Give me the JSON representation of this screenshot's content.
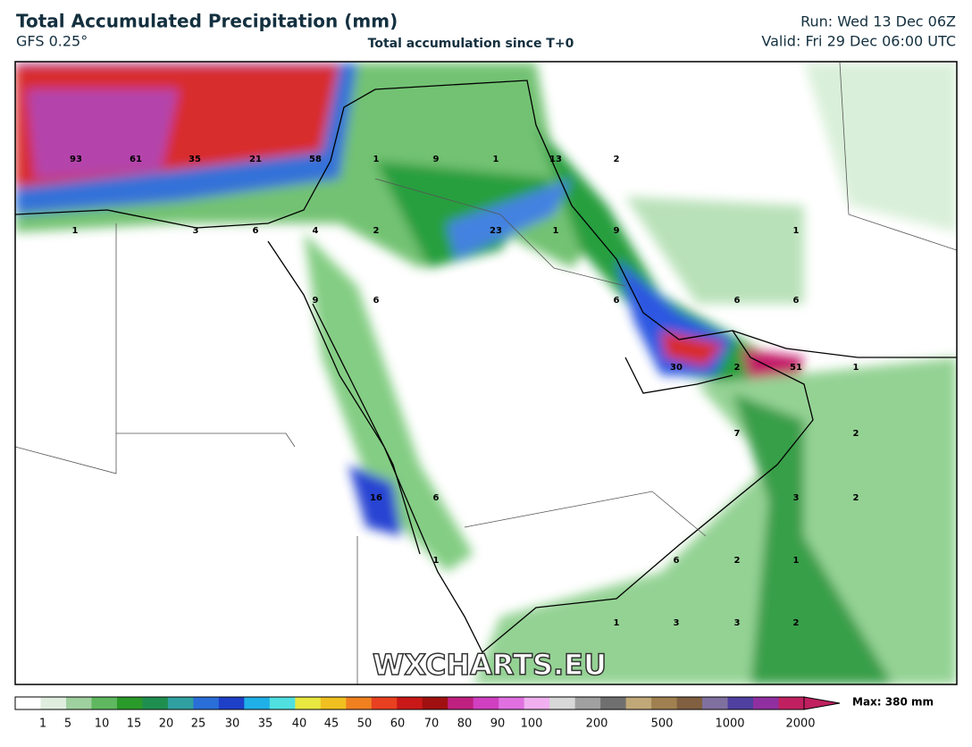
{
  "header": {
    "title": "Total Accumulated Precipitation (mm)",
    "model": "GFS 0.25°",
    "subtitle": "Total accumulation since T+0",
    "run": "Run: Wed 13 Dec 06Z",
    "valid": "Valid: Fri 29 Dec 06:00 UTC"
  },
  "map": {
    "watermark": "WXCHARTS.EU",
    "labels": [
      93,
      61,
      35,
      21,
      58,
      1,
      9,
      1,
      13,
      2,
      1,
      3,
      6,
      4,
      2,
      23,
      1,
      9,
      1,
      9,
      6,
      6,
      6,
      6,
      30,
      2,
      51,
      1,
      7,
      2,
      16,
      6,
      3,
      2,
      1,
      6,
      2,
      1,
      1,
      3,
      3,
      2
    ]
  },
  "colorbar": {
    "ticks": [
      1,
      5,
      10,
      15,
      20,
      25,
      30,
      35,
      40,
      45,
      50,
      60,
      70,
      80,
      90,
      100,
      200,
      500,
      1000,
      2000
    ],
    "max": "Max: 380 mm"
  }
}
